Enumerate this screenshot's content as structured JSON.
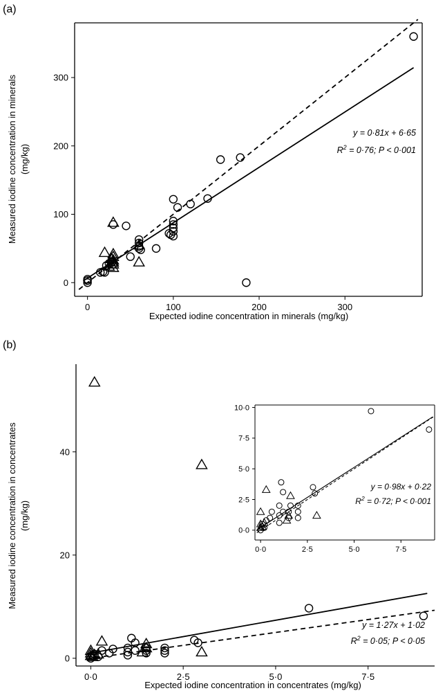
{
  "chart_data": [
    {
      "panel_label": "(a)",
      "type": "scatter",
      "xlabel": "Expected iodine concentration in minerals (mg/kg)",
      "ylabel_line1": "Measured iodine concentration in minerals",
      "ylabel_line2": "(mg/kg)",
      "xlim": [
        -15,
        390
      ],
      "ylim": [
        -20,
        380
      ],
      "xticks": [
        0,
        100,
        200,
        300
      ],
      "yticks": [
        0,
        100,
        200,
        300
      ],
      "xtick_labels": [
        "0",
        "100",
        "200",
        "300"
      ],
      "ytick_labels": [
        "0",
        "100",
        "200",
        "300"
      ],
      "series": [
        {
          "marker": "circle",
          "points": [
            [
              0,
              0
            ],
            [
              0,
              3
            ],
            [
              0,
              5
            ],
            [
              15,
              15
            ],
            [
              18,
              16
            ],
            [
              20,
              15
            ],
            [
              22,
              25
            ],
            [
              25,
              28
            ],
            [
              28,
              30
            ],
            [
              30,
              85
            ],
            [
              30,
              27
            ],
            [
              45,
              83
            ],
            [
              50,
              38
            ],
            [
              60,
              63
            ],
            [
              60,
              58
            ],
            [
              60,
              53
            ],
            [
              60,
              50
            ],
            [
              62,
              48
            ],
            [
              80,
              50
            ],
            [
              95,
              72
            ],
            [
              97,
              70
            ],
            [
              100,
              122
            ],
            [
              100,
              90
            ],
            [
              100,
              85
            ],
            [
              100,
              80
            ],
            [
              100,
              75
            ],
            [
              100,
              68
            ],
            [
              105,
              110
            ],
            [
              120,
              115
            ],
            [
              140,
              123
            ],
            [
              155,
              180
            ],
            [
              178,
              183
            ],
            [
              185,
              0
            ],
            [
              380,
              360
            ]
          ]
        },
        {
          "marker": "triangle",
          "points": [
            [
              20,
              44
            ],
            [
              25,
              24
            ],
            [
              28,
              35
            ],
            [
              30,
              42
            ],
            [
              30,
              38
            ],
            [
              30,
              33
            ],
            [
              30,
              30
            ],
            [
              30,
              27
            ],
            [
              30,
              22
            ],
            [
              30,
              88
            ],
            [
              60,
              30
            ],
            [
              60,
              55
            ]
          ]
        }
      ],
      "lines": [
        {
          "style": "solid",
          "slope": 0.81,
          "intercept": 6.65,
          "x_range": [
            -5,
            380
          ]
        },
        {
          "style": "dashed",
          "slope": 1.0,
          "intercept": 0,
          "x_range": [
            -10,
            385
          ]
        }
      ],
      "annotation": {
        "line1": "y = 0·81x + 6·65",
        "line2_a": "R",
        "line2_sup": "2",
        "line2_b": " = 0·76; P < 0·001"
      }
    },
    {
      "panel_label": "(b)",
      "type": "scatter",
      "xlabel": "Expected iodine concentration in concentrates (mg/kg)",
      "ylabel_line1": "Measured iodine concentration in concentrates",
      "ylabel_line2": "(mg/kg)",
      "xlim": [
        -0.4,
        9.3
      ],
      "ylim": [
        -1.5,
        57
      ],
      "xticks": [
        0,
        2.5,
        5,
        7.5
      ],
      "yticks": [
        0,
        20,
        40
      ],
      "xtick_labels": [
        "0·0",
        "2·5",
        "5·0",
        "7·5"
      ],
      "ytick_labels": [
        "0",
        "20",
        "40"
      ],
      "series": [
        {
          "marker": "circle",
          "points": [
            [
              0,
              0
            ],
            [
              0.05,
              0.5
            ],
            [
              0.1,
              0.8
            ],
            [
              0.2,
              0.3
            ],
            [
              0.3,
              1.5
            ],
            [
              0.5,
              1.0
            ],
            [
              0.6,
              1.8
            ],
            [
              1.0,
              0.6
            ],
            [
              1.0,
              1.2
            ],
            [
              1.0,
              2.0
            ],
            [
              1.1,
              3.9
            ],
            [
              1.2,
              1.5
            ],
            [
              1.2,
              3.0
            ],
            [
              1.5,
              1.0
            ],
            [
              1.5,
              1.5
            ],
            [
              1.5,
              2.0
            ],
            [
              2.0,
              1.0
            ],
            [
              2.0,
              1.5
            ],
            [
              2.0,
              2.0
            ],
            [
              2.8,
              3.5
            ],
            [
              2.9,
              3.0
            ],
            [
              5.9,
              9.7
            ],
            [
              9.0,
              8.2
            ]
          ]
        },
        {
          "marker": "triangle",
          "points": [
            [
              0,
              0.5
            ],
            [
              0,
              1.0
            ],
            [
              0,
              1.5
            ],
            [
              0.05,
              0.3
            ],
            [
              0.1,
              0.7
            ],
            [
              0.1,
              53.5
            ],
            [
              0.2,
              0.8
            ],
            [
              0.3,
              3.3
            ],
            [
              1.4,
              1.2
            ],
            [
              1.5,
              2.0
            ],
            [
              1.5,
              2.8
            ],
            [
              3.0,
              1.2
            ],
            [
              3.0,
              37.5
            ]
          ]
        }
      ],
      "lines": [
        {
          "style": "solid",
          "slope": 1.27,
          "intercept": 1.02,
          "x_range": [
            -0.1,
            9.1
          ]
        },
        {
          "style": "dashed",
          "slope": 1.0,
          "intercept": 0,
          "x_range": [
            -0.1,
            9.3
          ]
        }
      ],
      "annotation": {
        "line1": "y = 1·27x + 1·02",
        "line2_a": "R",
        "line2_sup": "2",
        "line2_b": " = 0·05; P < 0·05"
      },
      "inset": {
        "type": "scatter",
        "xlim": [
          -0.3,
          9.3
        ],
        "ylim": [
          -0.8,
          10.2
        ],
        "xticks": [
          0,
          2.5,
          5,
          7.5
        ],
        "yticks": [
          0,
          2.5,
          5,
          7.5,
          10
        ],
        "xtick_labels": [
          "0·0",
          "2·5",
          "5·0",
          "7·5"
        ],
        "ytick_labels": [
          "0·0",
          "2·5",
          "5·0",
          "7·5",
          "10·0"
        ],
        "series": [
          {
            "marker": "circle",
            "points": [
              [
                0,
                0
              ],
              [
                0.05,
                0.3
              ],
              [
                0.1,
                0.5
              ],
              [
                0.2,
                0.2
              ],
              [
                0.3,
                0.8
              ],
              [
                0.5,
                1.0
              ],
              [
                0.6,
                1.5
              ],
              [
                1.0,
                0.6
              ],
              [
                1.0,
                1.2
              ],
              [
                1.0,
                2.0
              ],
              [
                1.1,
                3.9
              ],
              [
                1.2,
                1.5
              ],
              [
                1.2,
                3.1
              ],
              [
                1.5,
                1.0
              ],
              [
                1.5,
                1.5
              ],
              [
                1.6,
                2.0
              ],
              [
                2.0,
                1.0
              ],
              [
                2.0,
                1.5
              ],
              [
                2.0,
                2.0
              ],
              [
                2.8,
                3.5
              ],
              [
                2.9,
                3.0
              ],
              [
                5.9,
                9.7
              ],
              [
                9.0,
                8.2
              ]
            ]
          },
          {
            "marker": "triangle",
            "points": [
              [
                0,
                0.2
              ],
              [
                0,
                0.5
              ],
              [
                0,
                1.5
              ],
              [
                0.1,
                0.3
              ],
              [
                0.2,
                0.6
              ],
              [
                0.3,
                3.3
              ],
              [
                1.4,
                0.8
              ],
              [
                1.5,
                1.2
              ],
              [
                1.6,
                2.8
              ],
              [
                3.0,
                1.2
              ]
            ]
          }
        ],
        "lines": [
          {
            "style": "solid",
            "slope": 0.98,
            "intercept": 0.22,
            "x_range": [
              -0.2,
              9.2
            ]
          },
          {
            "style": "dashed",
            "slope": 1.0,
            "intercept": 0,
            "x_range": [
              -0.2,
              9.3
            ]
          }
        ],
        "annotation": {
          "line1": "y = 0·98x + 0·22",
          "line2_a": "R",
          "line2_sup": "2",
          "line2_b": " = 0·72; P < 0·001"
        }
      }
    }
  ]
}
